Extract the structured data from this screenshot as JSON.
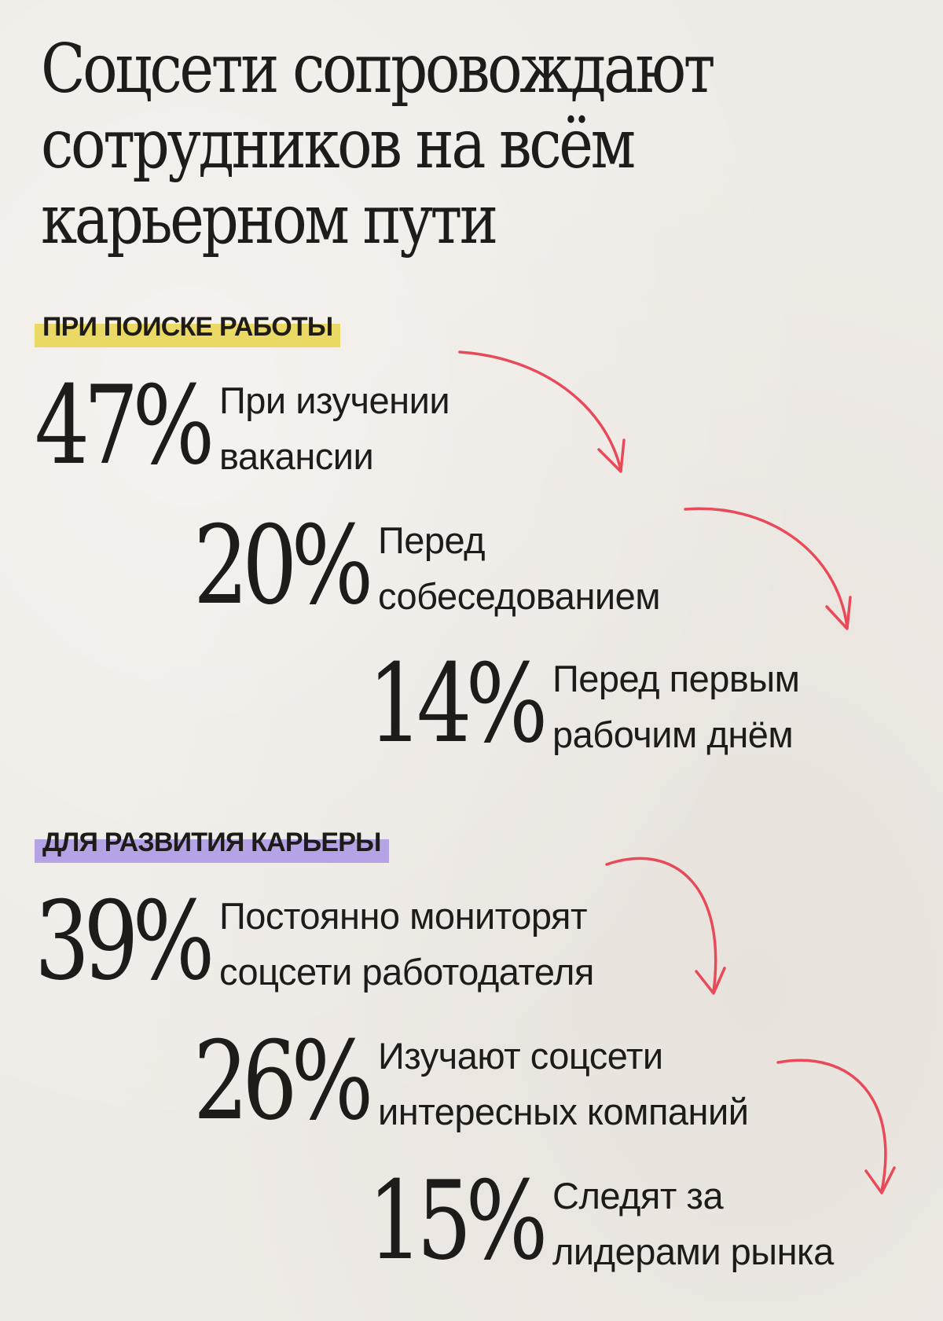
{
  "title": {
    "line1": "Соцсети сопровождают",
    "line2": "сотрудников на всём",
    "line3": "карьерном пути"
  },
  "sections": [
    {
      "label": "ПРИ ПОИСКЕ РАБОТЫ",
      "highlight_color": "#ead965",
      "stats": [
        {
          "percent": "47%",
          "line1": "При изучении",
          "line2": "вакансии"
        },
        {
          "percent": "20%",
          "line1": "Перед",
          "line2": "собеседованием"
        },
        {
          "percent": "14%",
          "line1": "Перед первым",
          "line2": "рабочим днём"
        }
      ]
    },
    {
      "label": "ДЛЯ РАЗВИТИЯ КАРЬЕРЫ",
      "highlight_color": "#b6a3e6",
      "stats": [
        {
          "percent": "39%",
          "line1": "Постоянно мониторят",
          "line2": "соцсети работодателя"
        },
        {
          "percent": "26%",
          "line1": "Изучают соцсети",
          "line2": "интересных компаний"
        },
        {
          "percent": "15%",
          "line1": "Следят за",
          "line2": "лидерами рынка"
        }
      ]
    }
  ],
  "arrow_color": "#e94a5a"
}
